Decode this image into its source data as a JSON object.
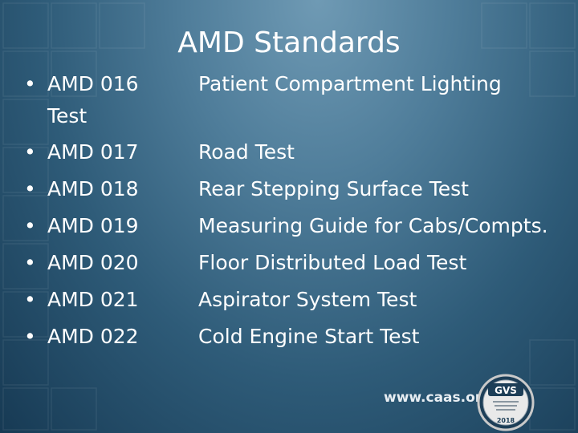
{
  "slide": {
    "title": "AMD Standards",
    "bullet_glyph": "•",
    "items": [
      {
        "code": "AMD 016 Test",
        "description": "Patient Compartment Lighting"
      },
      {
        "code": "AMD 017",
        "description": "Road Test"
      },
      {
        "code": "AMD 018",
        "description": "Rear Stepping Surface Test"
      },
      {
        "code": "AMD 019",
        "description": "Measuring Guide for Cabs/Compts."
      },
      {
        "code": "AMD 020",
        "description": "Floor Distributed Load Test"
      },
      {
        "code": "AMD 021",
        "description": "Aspirator System Test"
      },
      {
        "code": "AMD 022",
        "description": "Cold Engine Start Test"
      }
    ],
    "footer_url": "www.caas.org",
    "badge": {
      "text": "GVS",
      "year": "2018"
    }
  },
  "colors": {
    "text": "#ffffff",
    "background_light": "#6f9ab4",
    "background_dark": "#173a54"
  }
}
